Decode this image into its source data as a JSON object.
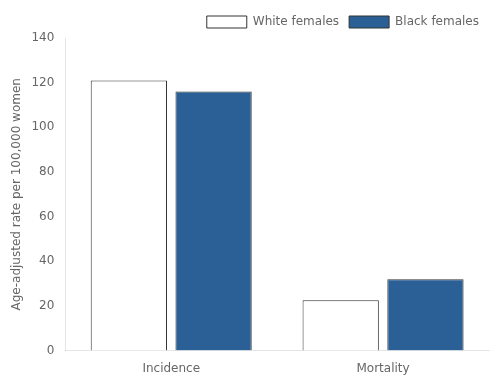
{
  "chart_data": {
    "type": "bar",
    "categories": [
      "Incidence",
      "Mortality"
    ],
    "series": [
      {
        "name": "White females",
        "color": "#ffffff",
        "values": [
          121,
          22.5
        ]
      },
      {
        "name": "Black females",
        "color": "#2b6096",
        "values": [
          116,
          32
        ]
      }
    ],
    "ylabel": "Age-adjusted rate per 100,000 women",
    "ylim": [
      0,
      140
    ],
    "yticks": [
      0,
      20,
      40,
      60,
      80,
      100,
      120,
      140
    ],
    "legend": "upper right",
    "grid": false
  }
}
